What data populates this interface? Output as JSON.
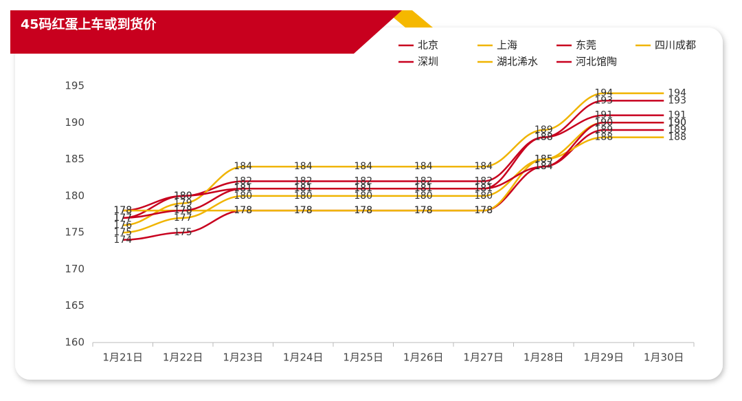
{
  "chart_data": {
    "type": "line",
    "title": "45码红蛋上车或到货价",
    "categories": [
      "1月21日",
      "1月22日",
      "1月23日",
      "1月24日",
      "1月25日",
      "1月26日",
      "1月27日",
      "1月28日",
      "1月29日",
      "1月30日"
    ],
    "series": [
      {
        "name": "北京",
        "color": "#c8001e",
        "values": [
          177,
          180,
          182,
          182,
          182,
          182,
          182,
          188,
          193,
          193
        ]
      },
      {
        "name": "上海",
        "color": "#f0b400",
        "values": [
          176,
          179,
          184,
          184,
          184,
          184,
          184,
          189,
          194,
          194
        ]
      },
      {
        "name": "东莞",
        "color": "#c8001e",
        "values": [
          178,
          180,
          181,
          181,
          181,
          181,
          181,
          188,
          191,
          191
        ]
      },
      {
        "name": "四川成都",
        "color": "#f0b400",
        "values": [
          175,
          177,
          180,
          180,
          180,
          180,
          180,
          185,
          190,
          190
        ]
      },
      {
        "name": "深圳",
        "color": "#c8001e",
        "values": [
          174,
          175,
          178,
          178,
          178,
          178,
          178,
          184,
          189,
          189
        ]
      },
      {
        "name": "湖北浠水",
        "color": "#f0b400",
        "values": [
          178,
          178,
          178,
          178,
          178,
          178,
          178,
          185,
          188,
          188
        ]
      },
      {
        "name": "河北馆陶",
        "color": "#c8001e",
        "values": [
          177,
          178,
          181,
          181,
          181,
          181,
          181,
          184,
          190,
          190
        ]
      }
    ],
    "ylim": [
      160,
      195
    ],
    "yticks": [
      160,
      165,
      170,
      175,
      180,
      185,
      190,
      195
    ],
    "grid": false
  }
}
